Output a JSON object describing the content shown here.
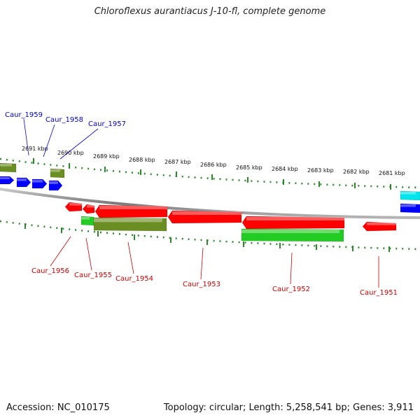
{
  "title": "Chloroflexus aurantiacus J-10-fl, complete genome",
  "footer": {
    "accession": "Accession: NC_010175",
    "summary": "Topology: circular; Length: 5,258,541 bp; Genes: 3,911"
  },
  "colors": {
    "backbone": "#8a8a8a",
    "ticks": "#2a8a2a",
    "gene_red": "#ff0000",
    "gene_blue": "#0000ff",
    "gene_olive": "#6b8e23",
    "gene_green": "#22cc22",
    "gene_cyan": "#00e5ee",
    "label_blue": "#0000cc",
    "label_red": "#cc0000"
  },
  "scale_labels": [
    "2691 kbp",
    "2690 kbp",
    "2689 kbp",
    "2688 kbp",
    "2687 kbp",
    "2686 kbp",
    "2685 kbp",
    "2684 kbp",
    "2683 kbp",
    "2682 kbp",
    "2681 kbp"
  ],
  "genes": [
    {
      "id": "",
      "strand": "+",
      "color": "olive"
    },
    {
      "id": "",
      "strand": "+",
      "color": "blue"
    },
    {
      "id": "Caur_1959",
      "strand": "+",
      "color": "blue"
    },
    {
      "id": "Caur_1958",
      "strand": "+",
      "color": "blue"
    },
    {
      "id": "Caur_1957",
      "strand": "+",
      "color": "olive"
    },
    {
      "id": "",
      "strand": "+",
      "color": "blue"
    },
    {
      "id": "Caur_1956",
      "strand": "-",
      "color": "red"
    },
    {
      "id": "Caur_1955",
      "strand": "-",
      "color": "red"
    },
    {
      "id": "",
      "strand": "-",
      "color": "green"
    },
    {
      "id": "Caur_1954",
      "strand": "-",
      "color": "red"
    },
    {
      "id": "",
      "strand": "-",
      "color": "olive"
    },
    {
      "id": "Caur_1953",
      "strand": "-",
      "color": "red"
    },
    {
      "id": "Caur_1952",
      "strand": "-",
      "color": "red"
    },
    {
      "id": "",
      "strand": "-",
      "color": "green"
    },
    {
      "id": "Caur_1951",
      "strand": "-",
      "color": "red"
    },
    {
      "id": "",
      "strand": "+",
      "color": "cyan"
    },
    {
      "id": "",
      "strand": "+",
      "color": "blue"
    }
  ],
  "callouts_top": [
    "Caur_1959",
    "Caur_1958",
    "Caur_1957"
  ],
  "callouts_bottom": [
    "Caur_1956",
    "Caur_1955",
    "Caur_1954",
    "Caur_1953",
    "Caur_1952",
    "Caur_1951"
  ]
}
